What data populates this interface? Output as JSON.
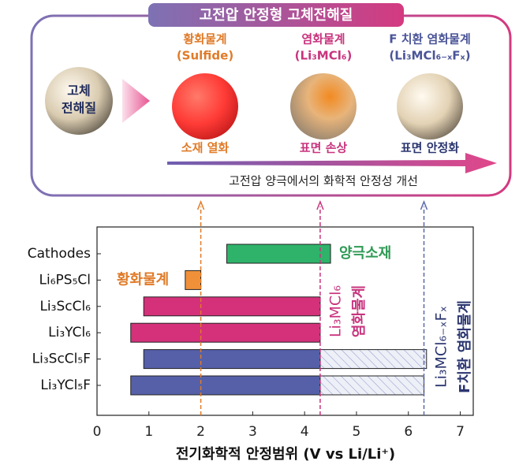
{
  "diagram": {
    "title": "고전압 안정형 고체전해질",
    "source": [
      "고체",
      "전해질"
    ],
    "columns": [
      {
        "label": "황화물계",
        "formula": "(Sulfide)",
        "result": "소재 열화"
      },
      {
        "label": "염화물계",
        "formula": "(Li₃MCl₆)",
        "result": "표면 손상"
      },
      {
        "label": "F 치환 염화물계",
        "formula": "(Li₃MCl₆₋ₓFₓ)",
        "result": "표면 안정화"
      }
    ],
    "arrow_text": "고전압 양극에서의 화학적 안정성 개선"
  },
  "chart_data": {
    "type": "floating-bar",
    "categories": [
      "Cathodes",
      "Li₆PS₅Cl",
      "Li₃ScCl₆",
      "Li₃YCl₆",
      "Li₃ScCl₅F",
      "Li₃YCl₅F"
    ],
    "start": [
      2.5,
      1.7,
      0.9,
      0.65,
      0.9,
      0.65
    ],
    "end": [
      4.5,
      2.0,
      4.3,
      4.3,
      4.3,
      4.3
    ],
    "extension_end": [
      null,
      null,
      null,
      null,
      6.35,
      6.3
    ],
    "colors": [
      "#2fb36b",
      "#f0913a",
      "#d4317a",
      "#d4317a",
      "#5560a8",
      "#5560a8"
    ],
    "xlim": [
      0,
      7.25
    ],
    "xticks": [
      0,
      1,
      2,
      3,
      4,
      5,
      6,
      7
    ],
    "xlabel": "전기화학적 안정범위  (V vs Li/Li⁺)",
    "markers": [
      {
        "value": 2.0,
        "color": "#e07b28"
      },
      {
        "value": 4.3,
        "color": "#c8347e"
      },
      {
        "value": 6.3,
        "color": "#5a6aa8"
      }
    ],
    "annotations": [
      "양극소재",
      "황화물계",
      "Li₃MCl₆",
      "염화물계",
      "Li₃MCl₆₋ₓFₓ",
      "F치환 염화물계"
    ]
  }
}
